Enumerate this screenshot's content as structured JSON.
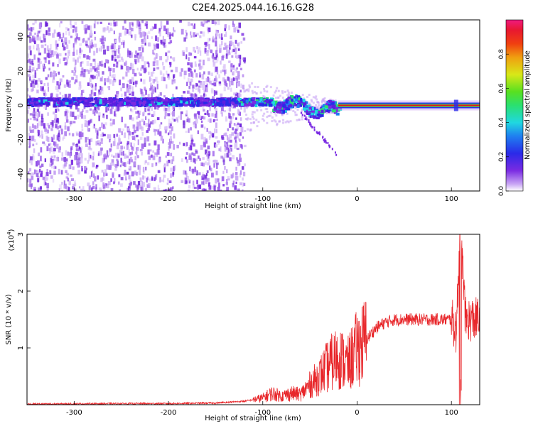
{
  "title": "C2E4.2025.044.16.16.G28",
  "colors": {
    "snr_line": "#e8262a",
    "spec_low": "#7a2be2",
    "spec_mid": "#22e0d0",
    "spec_high": "#e01818",
    "axis": "#000000"
  },
  "chart_data": [
    {
      "type": "heatmap",
      "title": "C2E4.2025.044.16.16.G28",
      "xlabel": "Height of straight line (km)",
      "ylabel": "Frequency (Hz)",
      "xlim": [
        -350,
        130
      ],
      "ylim": [
        -50,
        50
      ],
      "xticks": [
        -300,
        -200,
        -100,
        0,
        100
      ],
      "yticks": [
        -40,
        -20,
        0,
        20,
        40
      ],
      "colorbar": {
        "label": "Normalized spectral amplitude",
        "range": [
          0,
          1
        ],
        "ticks": [
          0.0,
          0.2,
          0.4,
          0.6,
          0.8
        ],
        "colormap": "rainbow (purple-blue-cyan-green-yellow-orange-red-pink)"
      },
      "features": {
        "broadband_noise_x_range": [
          -350,
          -120
        ],
        "signal_band_center_hz": 0,
        "strong_carrier_x_range": [
          -20,
          130
        ],
        "carrier_amplitude": 0.9
      }
    },
    {
      "type": "line",
      "xlabel": "Height of straight line (km)",
      "ylabel": "SNR (10 * v/v)",
      "scale_label": "(x10",
      "scale_exp": "4",
      "scale_close": ")",
      "xlim": [
        -350,
        130
      ],
      "ylim": [
        0,
        30000
      ],
      "xticks": [
        -300,
        -200,
        -100,
        0,
        100
      ],
      "yticks": [
        1,
        2,
        3
      ],
      "series": [
        {
          "x": [
            -350,
            -300,
            -250,
            -200,
            -150,
            -120,
            -100,
            -90,
            -80,
            -70,
            -60,
            -50,
            -40,
            -30,
            -20,
            -10,
            0,
            10,
            20,
            30,
            40,
            50,
            60,
            70,
            80,
            90,
            100,
            105,
            110,
            115,
            120,
            130
          ],
          "y": [
            100,
            150,
            200,
            200,
            300,
            600,
            1200,
            2000,
            1500,
            2000,
            1800,
            3500,
            5000,
            7000,
            8500,
            7000,
            10000,
            11500,
            13500,
            14500,
            15000,
            15000,
            15000,
            15000,
            15000,
            15000,
            15000,
            13000,
            30000,
            15000,
            15000,
            15000
          ]
        }
      ]
    }
  ]
}
